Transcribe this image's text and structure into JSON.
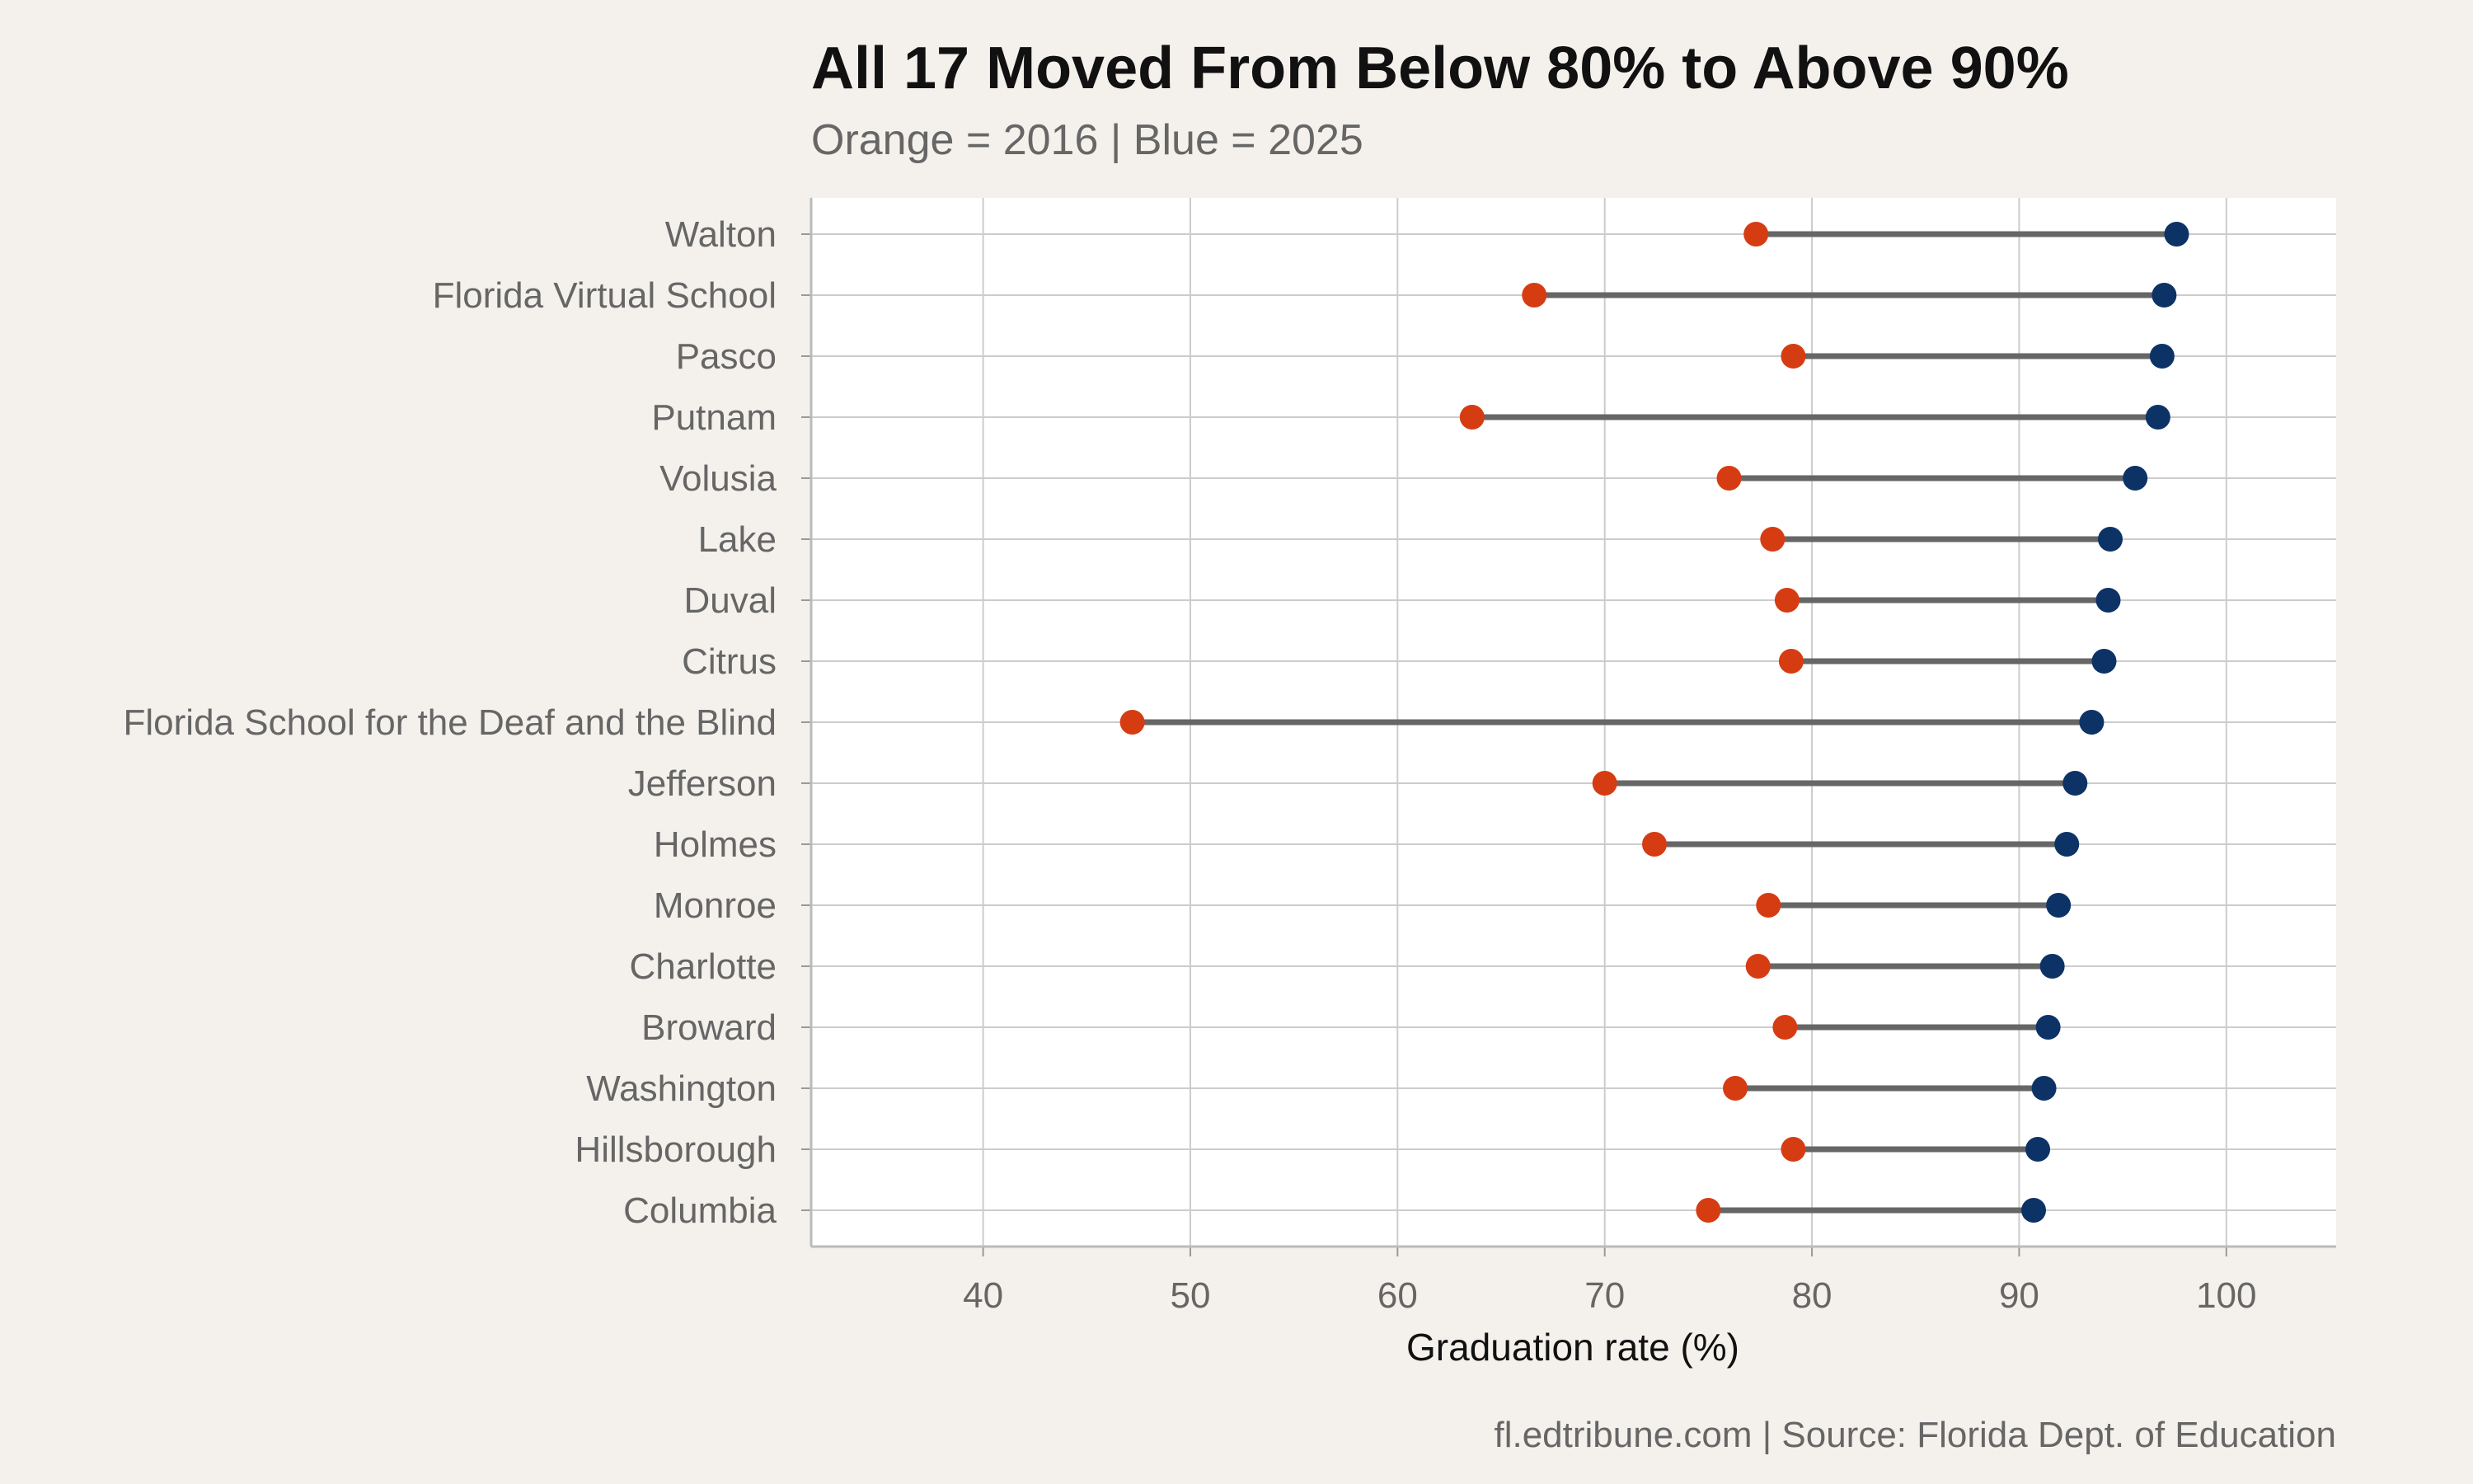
{
  "title": "All 17 Moved From Below 80% to Above 90%",
  "subtitle": "Orange = 2016 | Blue = 2025",
  "caption": "fl.edtribune.com | Source: Florida Dept. of Education",
  "colors": {
    "background": "#f4f1ec",
    "panel": "#ffffff",
    "grid": "#cccccc",
    "segment": "#666666",
    "orange_2016": "#d63c12",
    "blue_2025": "#0d3366"
  },
  "chart_data": {
    "type": "dumbbell",
    "title": "All 17 Moved From Below 80% to Above 90%",
    "subtitle": "Orange = 2016 | Blue = 2025",
    "xlabel": "Graduation rate (%)",
    "ylabel": "",
    "xlim": [
      31.7,
      105.3
    ],
    "x_ticks": [
      40,
      50,
      60,
      70,
      80,
      90,
      100
    ],
    "grid": true,
    "legend": "none",
    "categories": [
      "Walton",
      "Florida Virtual School",
      "Pasco",
      "Putnam",
      "Volusia",
      "Lake",
      "Duval",
      "Citrus",
      "Florida School for the Deaf and the Blind",
      "Jefferson",
      "Holmes",
      "Monroe",
      "Charlotte",
      "Broward",
      "Washington",
      "Hillsborough",
      "Columbia"
    ],
    "series": [
      {
        "name": "2016",
        "color": "#d63c12",
        "values": [
          77.3,
          66.6,
          79.1,
          63.6,
          76.0,
          78.1,
          78.8,
          79.0,
          47.2,
          70.0,
          72.4,
          77.9,
          77.4,
          78.7,
          76.3,
          79.1,
          75.0
        ]
      },
      {
        "name": "2025",
        "color": "#0d3366",
        "values": [
          97.6,
          97.0,
          96.9,
          96.7,
          95.6,
          94.4,
          94.3,
          94.1,
          93.5,
          92.7,
          92.3,
          91.9,
          91.6,
          91.4,
          91.2,
          90.9,
          90.7
        ]
      }
    ]
  }
}
